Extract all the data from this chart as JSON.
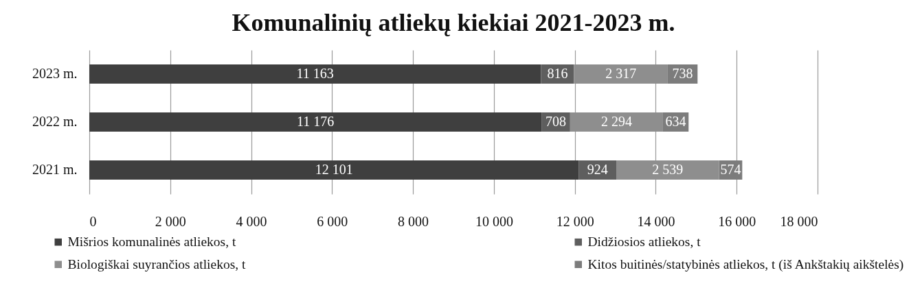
{
  "chart_data": {
    "type": "bar",
    "orientation": "horizontal",
    "stacked": true,
    "title": "Komunalinių atliekų kiekiai 2021-2023 m.",
    "categories": [
      "2023 m.",
      "2022 m.",
      "2021 m."
    ],
    "series": [
      {
        "name": "Mišrios komunalinės atliekos, t",
        "color": "#3f3f3f",
        "values": [
          11163,
          11176,
          12101
        ],
        "value_labels": [
          "11 163",
          "11 176",
          "12 101"
        ]
      },
      {
        "name": "Didžiosios atliekos, t",
        "color": "#5e5e5e",
        "values": [
          816,
          708,
          924
        ],
        "value_labels": [
          "816",
          "708",
          "924"
        ]
      },
      {
        "name": "Biologiškai suyrančios atliekos, t",
        "color": "#8e8e8e",
        "values": [
          2317,
          2294,
          2539
        ],
        "value_labels": [
          "2 317",
          "2 294",
          "2 539"
        ]
      },
      {
        "name": "Kitos buitinės/statybinės atliekos, t (iš Ankštakių aikštelės)",
        "color": "#7c7c7c",
        "values": [
          738,
          634,
          574
        ],
        "value_labels": [
          "738",
          "634",
          "574"
        ]
      }
    ],
    "xlim": [
      0,
      18000
    ],
    "xticks": [
      0,
      {
        "value": 2000,
        "label": "2 000"
      },
      {
        "value": 4000,
        "label": "4 000"
      },
      {
        "value": 6000,
        "label": "6 000"
      },
      {
        "value": 8000,
        "label": "8 000"
      },
      {
        "value": 10000,
        "label": "10 000"
      },
      {
        "value": 12000,
        "label": "12 000"
      },
      {
        "value": 14000,
        "label": "14 000"
      },
      {
        "value": 16000,
        "label": "16 000"
      },
      {
        "value": 18000,
        "label": "18 000"
      }
    ],
    "grid": "x",
    "legend": "bottom"
  }
}
